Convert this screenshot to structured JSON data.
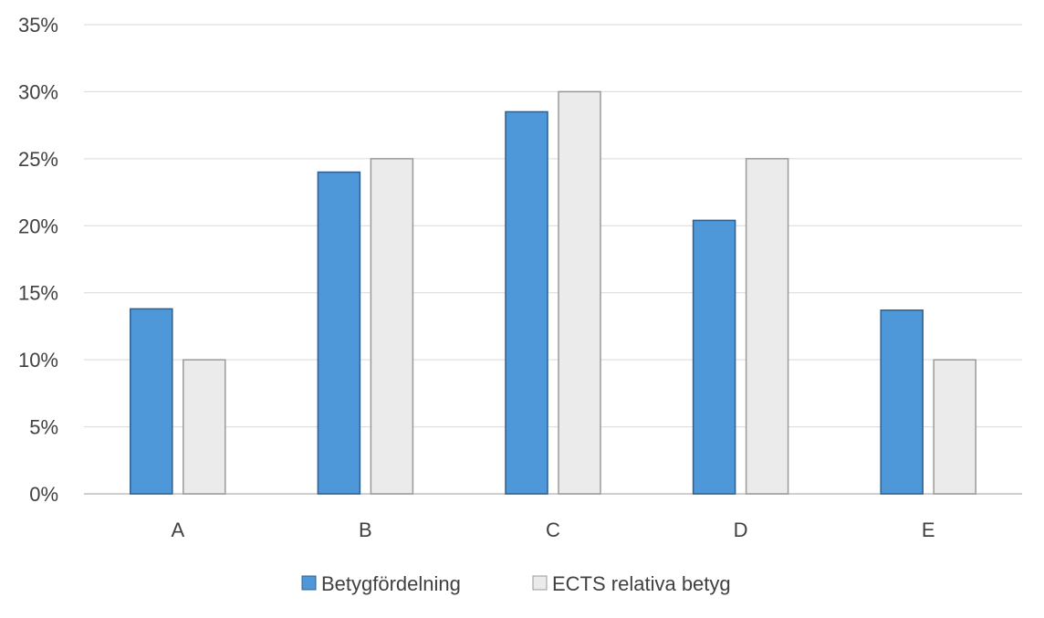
{
  "chart_data": {
    "type": "bar",
    "title": "",
    "xlabel": "",
    "ylabel": "",
    "categories": [
      "A",
      "B",
      "C",
      "D",
      "E"
    ],
    "ylim": [
      0,
      0.35
    ],
    "yticks": [
      "0%",
      "5%",
      "10%",
      "15%",
      "20%",
      "25%",
      "30%",
      "35%"
    ],
    "grid": true,
    "legend_position": "bottom",
    "series": [
      {
        "name": "Betygfördelning",
        "values": [
          0.138,
          0.24,
          0.285,
          0.204,
          0.137
        ],
        "color": "#4e97d8"
      },
      {
        "name": "ECTS relativa betyg",
        "values": [
          0.1,
          0.25,
          0.3,
          0.25,
          0.1
        ],
        "color": "#ebebeb"
      }
    ]
  }
}
